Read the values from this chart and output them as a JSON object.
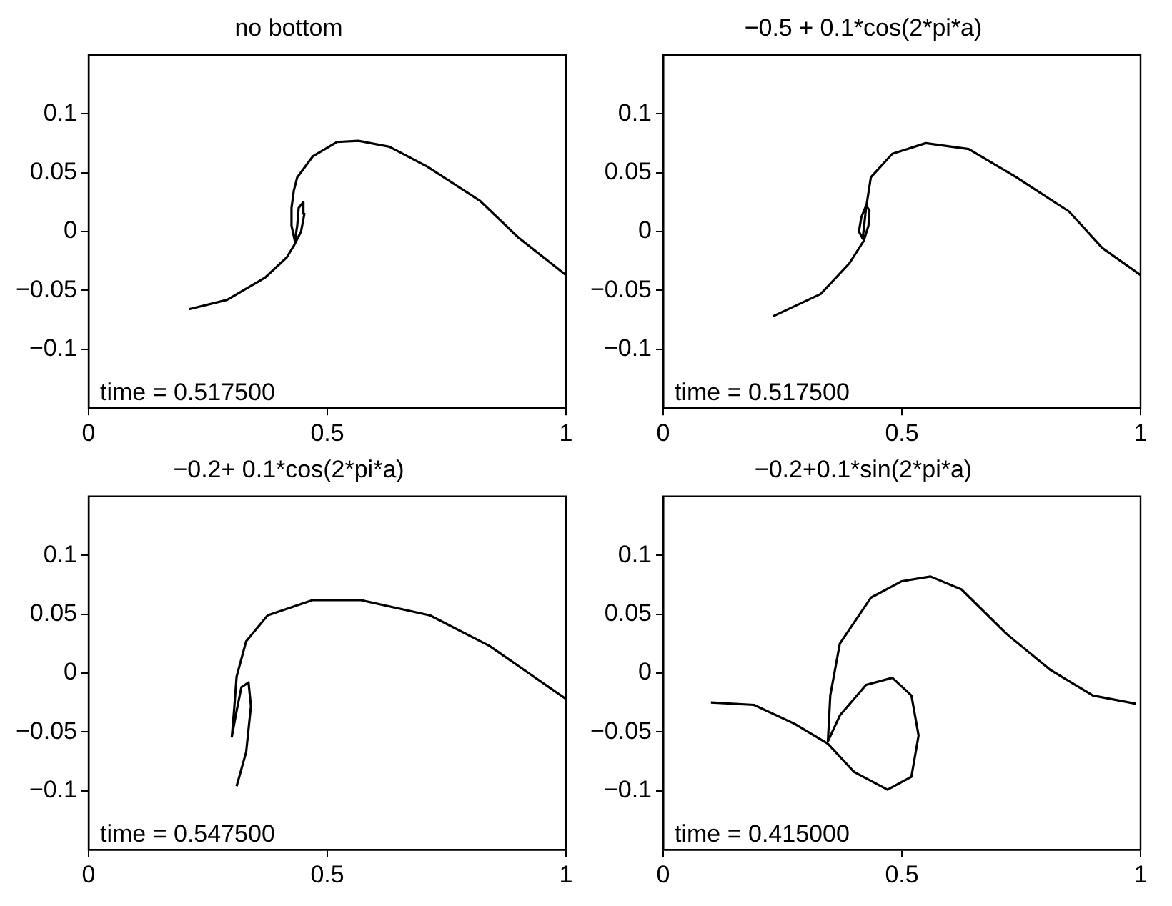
{
  "chart_data": [
    {
      "type": "line",
      "title": "no bottom",
      "annotations": [
        "time = 0.517500"
      ],
      "xlim": [
        0,
        1
      ],
      "ylim": [
        -0.15,
        0.15
      ],
      "xticks": [
        0,
        0.5,
        1
      ],
      "yticks": [
        -0.1,
        -0.05,
        0,
        0.05,
        0.1
      ],
      "series": [
        {
          "color": "#000000",
          "x": [
            0.21,
            0.29,
            0.37,
            0.415,
            0.43,
            0.445,
            0.452,
            0.45,
            0.44,
            0.437,
            0.432,
            0.425,
            0.425,
            0.43,
            0.437,
            0.47,
            0.52,
            0.565,
            0.63,
            0.71,
            0.82,
            0.9,
            1.0
          ],
          "values": [
            -0.066,
            -0.058,
            -0.039,
            -0.022,
            -0.012,
            0.0,
            0.015,
            0.025,
            0.02,
            0.005,
            -0.008,
            0.005,
            0.02,
            0.035,
            0.046,
            0.064,
            0.076,
            0.077,
            0.072,
            0.055,
            0.026,
            -0.005,
            -0.037
          ]
        }
      ]
    },
    {
      "type": "line",
      "title": "−0.5 + 0.1*cos(2*pi*a)",
      "annotations": [
        "time = 0.517500"
      ],
      "xlim": [
        0,
        1
      ],
      "ylim": [
        -0.15,
        0.15
      ],
      "xticks": [
        0,
        0.5,
        1
      ],
      "yticks": [
        -0.1,
        -0.05,
        0,
        0.05,
        0.1
      ],
      "series": [
        {
          "color": "#000000",
          "x": [
            0.23,
            0.33,
            0.39,
            0.42,
            0.43,
            0.432,
            0.425,
            0.415,
            0.41,
            0.418,
            0.425,
            0.435,
            0.48,
            0.55,
            0.64,
            0.74,
            0.85,
            0.92,
            1.0
          ],
          "values": [
            -0.072,
            -0.053,
            -0.027,
            -0.008,
            0.005,
            0.018,
            0.022,
            0.012,
            0.0,
            -0.006,
            0.02,
            0.046,
            0.066,
            0.075,
            0.07,
            0.046,
            0.017,
            -0.014,
            -0.037
          ]
        }
      ]
    },
    {
      "type": "line",
      "title": "−0.2+ 0.1*cos(2*pi*a)",
      "annotations": [
        "time = 0.547500"
      ],
      "xlim": [
        0,
        1
      ],
      "ylim": [
        -0.15,
        0.15
      ],
      "xticks": [
        0,
        0.5,
        1
      ],
      "yticks": [
        -0.1,
        -0.05,
        0,
        0.05,
        0.1
      ],
      "series": [
        {
          "color": "#000000",
          "x": [
            0.31,
            0.33,
            0.34,
            0.335,
            0.32,
            0.31,
            0.3,
            0.305,
            0.31,
            0.33,
            0.375,
            0.47,
            0.57,
            0.715,
            0.84,
            1.0
          ],
          "values": [
            -0.096,
            -0.067,
            -0.028,
            -0.008,
            -0.012,
            -0.032,
            -0.054,
            -0.03,
            -0.003,
            0.027,
            0.049,
            0.062,
            0.062,
            0.049,
            0.023,
            -0.022
          ]
        }
      ]
    },
    {
      "type": "line",
      "title": "−0.2+0.1*sin(2*pi*a)",
      "annotations": [
        "time = 0.415000"
      ],
      "xlim": [
        0,
        1
      ],
      "ylim": [
        -0.15,
        0.15
      ],
      "xticks": [
        0,
        0.5,
        1
      ],
      "yticks": [
        -0.1,
        -0.05,
        0,
        0.05,
        0.1
      ],
      "series": [
        {
          "color": "#000000",
          "x": [
            0.1,
            0.19,
            0.275,
            0.345,
            0.4,
            0.47,
            0.52,
            0.535,
            0.52,
            0.48,
            0.425,
            0.37,
            0.345,
            0.35,
            0.37,
            0.435,
            0.5,
            0.56,
            0.625,
            0.72,
            0.81,
            0.9,
            0.99
          ],
          "values": [
            -0.025,
            -0.027,
            -0.043,
            -0.06,
            -0.084,
            -0.099,
            -0.088,
            -0.053,
            -0.019,
            -0.004,
            -0.01,
            -0.036,
            -0.058,
            -0.019,
            0.025,
            0.064,
            0.078,
            0.082,
            0.071,
            0.033,
            0.003,
            -0.019,
            -0.026
          ]
        }
      ]
    }
  ]
}
